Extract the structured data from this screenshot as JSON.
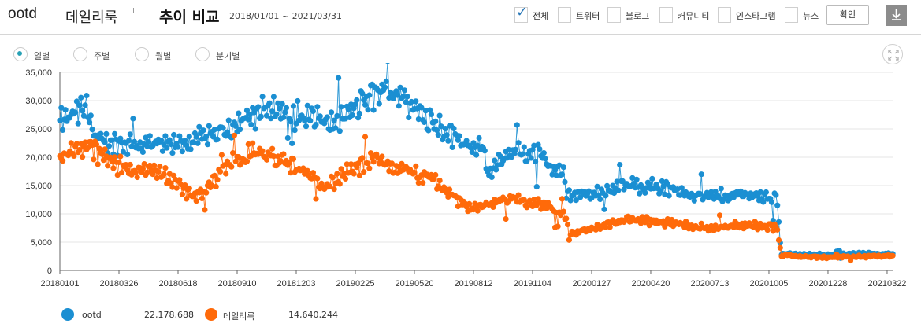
{
  "header": {
    "keyword1": "ootd",
    "keyword2": "데일리룩",
    "title": "추이 비교",
    "period": "2018/01/01 ~ 2021/03/31"
  },
  "filters": [
    {
      "label": "전체",
      "checked": true
    },
    {
      "label": "트위터",
      "checked": false
    },
    {
      "label": "블로그",
      "checked": false
    },
    {
      "label": "커뮤니티",
      "checked": false
    },
    {
      "label": "인스타그램",
      "checked": false
    },
    {
      "label": "뉴스",
      "checked": false
    }
  ],
  "buttons": {
    "confirm": "확인",
    "download_icon": "download-icon",
    "expand_icon": "expand-icon"
  },
  "periods": [
    {
      "label": "일별",
      "selected": true
    },
    {
      "label": "주별",
      "selected": false
    },
    {
      "label": "월별",
      "selected": false
    },
    {
      "label": "분기별",
      "selected": false
    }
  ],
  "legend": [
    {
      "name": "ootd",
      "total": "22,178,688",
      "color": "#1b8fd2"
    },
    {
      "name": "데일리룩",
      "total": "14,640,244",
      "color": "#ff6a0a"
    }
  ],
  "chart_data": {
    "type": "line",
    "ylim": [
      0,
      35000
    ],
    "yticks": [
      0,
      5000,
      10000,
      15000,
      20000,
      25000,
      30000,
      35000
    ],
    "ytick_labels": [
      "0",
      "5,000",
      "10,000",
      "15,000",
      "20,000",
      "25,000",
      "30,000",
      "35,000"
    ],
    "xtick_labels": [
      "20180101",
      "20180326",
      "20180618",
      "20180910",
      "20181203",
      "20190225",
      "20190520",
      "20190812",
      "20191104",
      "20200127",
      "20200420",
      "20200713",
      "20201005",
      "20201228",
      "20210322"
    ],
    "x_range": [
      "2018-01-01",
      "2021-03-31"
    ],
    "markers": true,
    "series": [
      {
        "name": "ootd",
        "color": "#1b8fd2",
        "approx_values_by_day_index": [
          [
            0,
            26000
          ],
          [
            40,
            29000
          ],
          [
            50,
            23000
          ],
          [
            80,
            22500
          ],
          [
            160,
            22000
          ],
          [
            220,
            24000
          ],
          [
            260,
            26500
          ],
          [
            300,
            29000
          ],
          [
            330,
            27500
          ],
          [
            390,
            26000
          ],
          [
            420,
            28500
          ],
          [
            450,
            31500
          ],
          [
            480,
            31500
          ],
          [
            500,
            29000
          ],
          [
            540,
            25500
          ],
          [
            570,
            23000
          ],
          [
            600,
            21500
          ],
          [
            610,
            17000
          ],
          [
            640,
            21000
          ],
          [
            680,
            20500
          ],
          [
            700,
            18000
          ],
          [
            715,
            17500
          ],
          [
            720,
            13500
          ],
          [
            760,
            13500
          ],
          [
            800,
            15000
          ],
          [
            840,
            15000
          ],
          [
            880,
            14000
          ],
          [
            920,
            13000
          ],
          [
            980,
            13500
          ],
          [
            1020,
            12500
          ],
          [
            1025,
            3000
          ],
          [
            1060,
            2700
          ],
          [
            1100,
            2800
          ],
          [
            1185,
            3000
          ]
        ]
      },
      {
        "name": "데일리룩",
        "color": "#ff6a0a",
        "approx_values_by_day_index": [
          [
            0,
            20000
          ],
          [
            40,
            22000
          ],
          [
            80,
            18500
          ],
          [
            150,
            17000
          ],
          [
            190,
            13000
          ],
          [
            210,
            14500
          ],
          [
            240,
            19000
          ],
          [
            280,
            21000
          ],
          [
            330,
            18500
          ],
          [
            380,
            15000
          ],
          [
            420,
            18000
          ],
          [
            450,
            19500
          ],
          [
            480,
            18000
          ],
          [
            530,
            16000
          ],
          [
            580,
            11000
          ],
          [
            640,
            12500
          ],
          [
            690,
            11500
          ],
          [
            720,
            9500
          ],
          [
            725,
            6500
          ],
          [
            760,
            7500
          ],
          [
            810,
            9000
          ],
          [
            860,
            8500
          ],
          [
            920,
            7500
          ],
          [
            960,
            8000
          ],
          [
            1000,
            8000
          ],
          [
            1020,
            7500
          ],
          [
            1025,
            2700
          ],
          [
            1060,
            2400
          ],
          [
            1100,
            2300
          ],
          [
            1185,
            2600
          ]
        ]
      }
    ]
  }
}
